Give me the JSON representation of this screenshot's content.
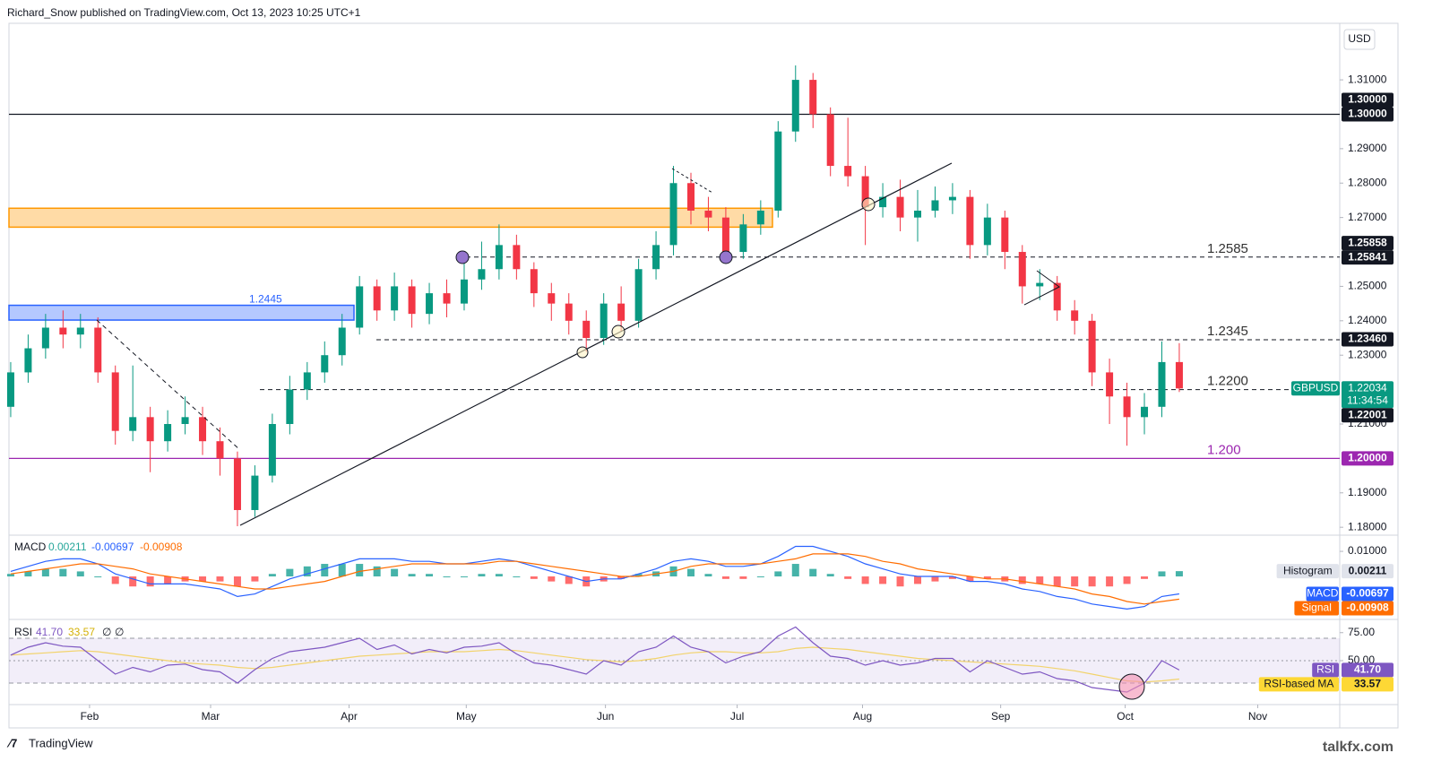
{
  "chart_data": {
    "type": "candlestick",
    "header": "Richard_Snow published on TradingView.com, Oct 13, 2023 10:25 UTC+1",
    "currency": "USD",
    "footer_brand": "TradingView",
    "watermark": "talkfx.com",
    "up_color": "#089981",
    "down_color": "#f23645",
    "xlim": [
      -0.1,
      76.2
    ],
    "xticks": [
      {
        "value": 4.52,
        "label": "Feb"
      },
      {
        "value": 11.46,
        "label": "Mar"
      },
      {
        "value": 19.4,
        "label": "Apr"
      },
      {
        "value": 26.12,
        "label": "May"
      },
      {
        "value": 34.1,
        "label": "Jun"
      },
      {
        "value": 41.65,
        "label": "Jul"
      },
      {
        "value": 48.84,
        "label": "Aug"
      },
      {
        "value": 56.76,
        "label": "Sep"
      },
      {
        "value": 63.9,
        "label": "Oct"
      },
      {
        "value": 71.5,
        "label": "Nov"
      }
    ],
    "ylim": [
      1.1777,
      1.3306
    ],
    "yticks": [
      {
        "value": 1.18,
        "label": "1.18000"
      },
      {
        "value": 1.19,
        "label": "1.19000"
      },
      {
        "value": 1.21,
        "label": "1.21000"
      },
      {
        "value": 1.23,
        "label": "1.23000"
      },
      {
        "value": 1.24,
        "label": "1.24000"
      },
      {
        "value": 1.25,
        "label": "1.25000"
      },
      {
        "value": 1.27,
        "label": "1.27000"
      },
      {
        "value": 1.28,
        "label": "1.28000"
      },
      {
        "value": 1.29,
        "label": "1.29000"
      },
      {
        "value": 1.31,
        "label": "1.31000"
      }
    ],
    "ohlc": [
      [
        1.215,
        1.228,
        1.212,
        1.225
      ],
      [
        1.225,
        1.236,
        1.222,
        1.232
      ],
      [
        1.232,
        1.242,
        1.229,
        1.238
      ],
      [
        1.238,
        1.243,
        1.232,
        1.236
      ],
      [
        1.236,
        1.242,
        1.232,
        1.238
      ],
      [
        1.238,
        1.241,
        1.222,
        1.225
      ],
      [
        1.225,
        1.227,
        1.204,
        1.208
      ],
      [
        1.208,
        1.227,
        1.205,
        1.212
      ],
      [
        1.212,
        1.215,
        1.196,
        1.205
      ],
      [
        1.205,
        1.214,
        1.202,
        1.21
      ],
      [
        1.21,
        1.218,
        1.207,
        1.212
      ],
      [
        1.212,
        1.215,
        1.201,
        1.205
      ],
      [
        1.205,
        1.209,
        1.195,
        1.2
      ],
      [
        1.2,
        1.202,
        1.1803,
        1.185
      ],
      [
        1.185,
        1.198,
        1.183,
        1.195
      ],
      [
        1.195,
        1.213,
        1.193,
        1.21
      ],
      [
        1.21,
        1.224,
        1.207,
        1.22
      ],
      [
        1.22,
        1.228,
        1.217,
        1.225
      ],
      [
        1.225,
        1.234,
        1.222,
        1.23
      ],
      [
        1.23,
        1.242,
        1.227,
        1.238
      ],
      [
        1.238,
        1.253,
        1.236,
        1.25
      ],
      [
        1.25,
        1.252,
        1.24,
        1.243
      ],
      [
        1.243,
        1.254,
        1.24,
        1.25
      ],
      [
        1.25,
        1.252,
        1.238,
        1.242
      ],
      [
        1.242,
        1.251,
        1.239,
        1.248
      ],
      [
        1.248,
        1.252,
        1.241,
        1.245
      ],
      [
        1.245,
        1.26,
        1.243,
        1.252
      ],
      [
        1.252,
        1.263,
        1.249,
        1.255
      ],
      [
        1.255,
        1.268,
        1.252,
        1.262
      ],
      [
        1.262,
        1.265,
        1.252,
        1.255
      ],
      [
        1.255,
        1.257,
        1.244,
        1.248
      ],
      [
        1.248,
        1.251,
        1.24,
        1.245
      ],
      [
        1.245,
        1.248,
        1.236,
        1.24
      ],
      [
        1.24,
        1.243,
        1.231,
        1.235
      ],
      [
        1.235,
        1.248,
        1.233,
        1.245
      ],
      [
        1.245,
        1.25,
        1.237,
        1.24
      ],
      [
        1.24,
        1.258,
        1.238,
        1.255
      ],
      [
        1.255,
        1.266,
        1.252,
        1.262
      ],
      [
        1.262,
        1.285,
        1.259,
        1.28
      ],
      [
        1.28,
        1.283,
        1.268,
        1.272
      ],
      [
        1.272,
        1.276,
        1.266,
        1.27
      ],
      [
        1.27,
        1.273,
        1.258,
        1.26
      ],
      [
        1.26,
        1.271,
        1.258,
        1.268
      ],
      [
        1.268,
        1.275,
        1.265,
        1.272
      ],
      [
        1.272,
        1.298,
        1.27,
        1.295
      ],
      [
        1.295,
        1.3142,
        1.292,
        1.31
      ],
      [
        1.31,
        1.312,
        1.296,
        1.3
      ],
      [
        1.3,
        1.302,
        1.282,
        1.285
      ],
      [
        1.285,
        1.299,
        1.279,
        1.282
      ],
      [
        1.282,
        1.285,
        1.262,
        1.273
      ],
      [
        1.273,
        1.28,
        1.27,
        1.276
      ],
      [
        1.276,
        1.281,
        1.266,
        1.27
      ],
      [
        1.27,
        1.278,
        1.263,
        1.272
      ],
      [
        1.272,
        1.279,
        1.27,
        1.275
      ],
      [
        1.275,
        1.28,
        1.271,
        1.276
      ],
      [
        1.276,
        1.278,
        1.258,
        1.262
      ],
      [
        1.262,
        1.274,
        1.259,
        1.27
      ],
      [
        1.27,
        1.272,
        1.255,
        1.26
      ],
      [
        1.26,
        1.262,
        1.245,
        1.25
      ],
      [
        1.25,
        1.255,
        1.246,
        1.251
      ],
      [
        1.251,
        1.253,
        1.24,
        1.243
      ],
      [
        1.243,
        1.246,
        1.236,
        1.24
      ],
      [
        1.24,
        1.242,
        1.221,
        1.225
      ],
      [
        1.225,
        1.229,
        1.21,
        1.218
      ],
      [
        1.218,
        1.222,
        1.2037,
        1.212
      ],
      [
        1.212,
        1.219,
        1.207,
        1.215
      ],
      [
        1.215,
        1.234,
        1.212,
        1.228
      ],
      [
        1.228,
        1.2335,
        1.2193,
        1.22034
      ]
    ],
    "hlines": [
      {
        "value": 1.3,
        "color": "#131722",
        "dash": false
      },
      {
        "value": 1.2585,
        "label": "1.2585",
        "color": "#131722",
        "dash": true
      },
      {
        "value": 1.2345,
        "label": "1.2345",
        "color": "#131722",
        "dash": true
      },
      {
        "value": 1.22,
        "label": "1.2200",
        "color": "#131722",
        "dash": true
      },
      {
        "value": 1.2,
        "label": "1.200",
        "color": "#9c27b0",
        "dash": false
      }
    ],
    "zones": [
      {
        "low": 1.2672,
        "high": 1.2727,
        "color": "#ff9800"
      },
      {
        "low": 1.2402,
        "high": 1.2445,
        "label": "1.2445",
        "color": "#2962ff"
      }
    ],
    "badges": [
      {
        "value": 1.3,
        "label": "1.30000"
      },
      {
        "value": 1.3,
        "label": "1.30000"
      },
      {
        "value": 1.25858,
        "label": "1.25858"
      },
      {
        "value": 1.25841,
        "label": "1.25841"
      },
      {
        "value": 1.2346,
        "label": "1.23460"
      },
      {
        "value": 1.2,
        "label": "1.20000",
        "color": "#9c27b0"
      }
    ],
    "symbol_badge": {
      "name": "GBPUSD",
      "value": 1.22034,
      "label": "1.22034",
      "countdown": "11:34:54",
      "color": "#089981"
    },
    "low_badge": {
      "value": 1.22001,
      "label": "1.22001"
    },
    "macd": {
      "title": "MACD",
      "ylim": [
        -0.0168,
        0.0161
      ],
      "yticks": [
        {
          "value": 0.01,
          "label": "0.01000"
        }
      ],
      "macd_color": "#2962ff",
      "signal_color": "#ff6d00",
      "hist_up": "#26a69a",
      "hist_down": "#ff5252",
      "macd": [
        0.002,
        0.004,
        0.006,
        0.007,
        0.007,
        0.005,
        0.001,
        -0.001,
        -0.003,
        -0.003,
        -0.003,
        -0.004,
        -0.005,
        -0.008,
        -0.007,
        -0.004,
        -0.001,
        0.001,
        0.003,
        0.005,
        0.007,
        0.007,
        0.007,
        0.006,
        0.006,
        0.005,
        0.005,
        0.006,
        0.007,
        0.006,
        0.004,
        0.002,
        0.0,
        -0.002,
        -0.001,
        -0.001,
        0.001,
        0.003,
        0.006,
        0.007,
        0.006,
        0.004,
        0.004,
        0.005,
        0.008,
        0.012,
        0.012,
        0.01,
        0.008,
        0.005,
        0.003,
        0.001,
        0.0,
        0.0,
        0.0,
        -0.002,
        -0.002,
        -0.003,
        -0.005,
        -0.006,
        -0.008,
        -0.009,
        -0.011,
        -0.012,
        -0.013,
        -0.012,
        -0.008,
        -0.00697
      ],
      "signal": [
        0.001,
        0.002,
        0.003,
        0.004,
        0.005,
        0.005,
        0.004,
        0.003,
        0.001,
        0.0,
        -0.001,
        -0.002,
        -0.003,
        -0.004,
        -0.005,
        -0.005,
        -0.004,
        -0.003,
        -0.002,
        0.0,
        0.002,
        0.003,
        0.004,
        0.005,
        0.005,
        0.005,
        0.005,
        0.005,
        0.006,
        0.006,
        0.005,
        0.004,
        0.003,
        0.002,
        0.001,
        0.0,
        0.0,
        0.001,
        0.002,
        0.004,
        0.005,
        0.005,
        0.005,
        0.005,
        0.006,
        0.007,
        0.009,
        0.009,
        0.009,
        0.008,
        0.006,
        0.005,
        0.003,
        0.002,
        0.001,
        0.0,
        -0.001,
        -0.001,
        -0.002,
        -0.003,
        -0.004,
        -0.005,
        -0.007,
        -0.008,
        -0.01,
        -0.011,
        -0.01,
        -0.00908
      ],
      "histogram": [
        0.001,
        0.002,
        0.003,
        0.003,
        0.002,
        0.0,
        -0.003,
        -0.004,
        -0.004,
        -0.003,
        -0.002,
        -0.002,
        -0.002,
        -0.004,
        -0.002,
        0.001,
        0.003,
        0.004,
        0.005,
        0.005,
        0.005,
        0.004,
        0.003,
        0.001,
        0.001,
        0.0,
        0.0,
        0.001,
        0.001,
        0.0,
        -0.001,
        -0.002,
        -0.003,
        -0.004,
        -0.002,
        -0.001,
        0.001,
        0.002,
        0.004,
        0.003,
        0.001,
        -0.001,
        -0.001,
        0.0,
        0.002,
        0.005,
        0.003,
        0.001,
        -0.001,
        -0.003,
        -0.003,
        -0.004,
        -0.003,
        -0.002,
        -0.001,
        -0.002,
        -0.001,
        -0.002,
        -0.003,
        -0.003,
        -0.004,
        -0.004,
        -0.004,
        -0.004,
        -0.003,
        -0.001,
        0.002,
        0.00211
      ],
      "badges": [
        {
          "name": "Histogram",
          "value": 0.00211,
          "label": "0.00211",
          "bg": "#e0e3eb",
          "fg": "#131722"
        },
        {
          "name": "MACD",
          "value": -0.00697,
          "label": "-0.00697",
          "bg": "#2962ff",
          "fg": "#ffffff"
        },
        {
          "name": "Signal",
          "value": -0.00908,
          "label": "-0.00908",
          "bg": "#ff6d00",
          "fg": "#ffffff"
        }
      ]
    },
    "rsi": {
      "title": "RSI",
      "extras": [
        "∅",
        "∅"
      ],
      "ylim": [
        11.6,
        86
      ],
      "yticks": [
        {
          "value": 75,
          "label": "75.00"
        },
        {
          "value": 50,
          "label": "50.00"
        }
      ],
      "bands": [
        70,
        50,
        30
      ],
      "rsi_color": "#7e57c2",
      "ma_color": "#f2d36b",
      "rsi": [
        55,
        62,
        66,
        63,
        62,
        50,
        38,
        44,
        40,
        46,
        47,
        42,
        40,
        30,
        42,
        52,
        58,
        60,
        62,
        66,
        70,
        60,
        64,
        56,
        60,
        57,
        62,
        63,
        66,
        56,
        48,
        46,
        42,
        38,
        50,
        46,
        58,
        62,
        72,
        62,
        58,
        48,
        54,
        58,
        72,
        80,
        66,
        54,
        52,
        46,
        50,
        46,
        48,
        52,
        52,
        40,
        50,
        44,
        38,
        40,
        34,
        32,
        26,
        24,
        22,
        30,
        50,
        41.7
      ],
      "ma": [
        55,
        56,
        57,
        58,
        59,
        58,
        56,
        54,
        52,
        50,
        48,
        47,
        46,
        44,
        43,
        44,
        46,
        48,
        50,
        52,
        54,
        55,
        56,
        57,
        58,
        58,
        58,
        59,
        60,
        59,
        57,
        55,
        53,
        51,
        50,
        49,
        50,
        52,
        55,
        57,
        58,
        58,
        57,
        57,
        58,
        61,
        62,
        61,
        60,
        58,
        56,
        54,
        52,
        51,
        50,
        49,
        48,
        47,
        46,
        45,
        43,
        41,
        38,
        35,
        32,
        31,
        32,
        33.57
      ],
      "badges": [
        {
          "name": "RSI",
          "value": 41.7,
          "label": "41.70",
          "bg": "#7e57c2",
          "fg": "#ffffff"
        },
        {
          "name": "RSI-based MA",
          "value": 33.57,
          "label": "33.57",
          "bg": "#fdd835",
          "fg": "#131722"
        }
      ]
    }
  }
}
